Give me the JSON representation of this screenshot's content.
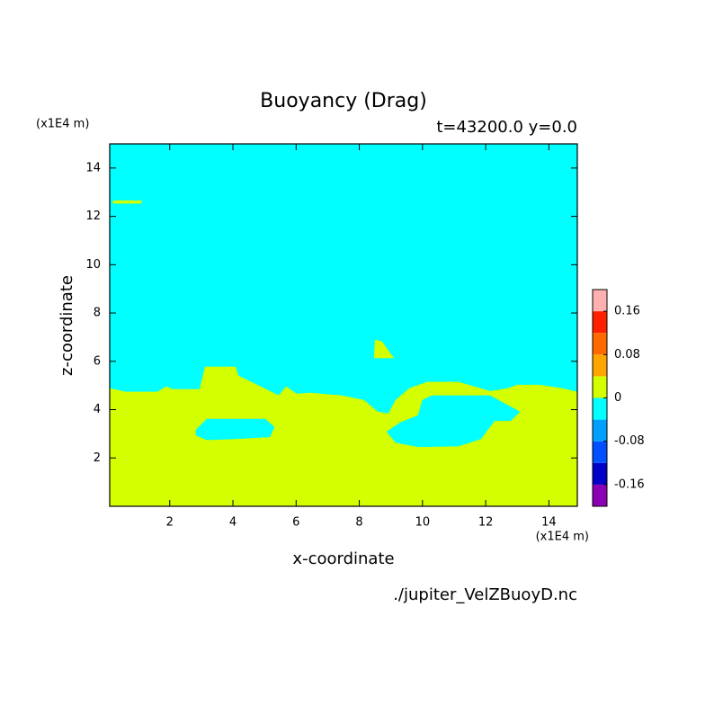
{
  "chart_data": {
    "type": "contour",
    "title": "Buoyancy (Drag)",
    "subtitle": "t=43200.0 y=0.0",
    "x_label": "x-coordinate",
    "y_label": "z-coordinate",
    "x_unit": "(x1E4 m)",
    "y_unit": "(x1E4 m)",
    "source": "./jupiter_VelZBuoyD.nc",
    "xlim": [
      0.1,
      14.9
    ],
    "ylim": [
      0,
      15
    ],
    "xticks": [
      2,
      4,
      6,
      8,
      10,
      12,
      14
    ],
    "yticks": [
      2,
      4,
      6,
      8,
      10,
      12,
      14
    ],
    "colorbar": {
      "bounds": [
        -0.2,
        -0.16,
        -0.12,
        -0.08,
        -0.04,
        0,
        0.04,
        0.08,
        0.12,
        0.16,
        0.2
      ],
      "colors": [
        "#8c00b4",
        "#0000c8",
        "#0050ff",
        "#00a0ff",
        "#00ffff",
        "#d4ff00",
        "#ffa500",
        "#ff6a00",
        "#ff2000",
        "#ffb0b0"
      ],
      "ticks": [
        -0.16,
        -0.08,
        0,
        0.08,
        0.16
      ]
    },
    "regions": [
      {
        "color": "#00ffff",
        "x": [
          0.1,
          14.9,
          14.9,
          0.1
        ],
        "y": [
          0,
          0,
          15,
          15
        ]
      },
      {
        "color": "#d4ff00",
        "x": [
          0.1,
          0.61,
          1.61,
          1.89,
          2.09,
          2.95,
          3.12,
          4.08,
          4.17,
          4.88,
          5.45,
          5.68,
          6.02,
          6.45,
          7.44,
          8.15,
          8.58,
          8.92,
          9.15,
          9.58,
          10.15,
          11.14,
          12.14,
          12.71,
          12.99,
          13.7,
          14.41,
          14.9,
          14.9,
          0.1
        ],
        "y": [
          4.88,
          4.73,
          4.73,
          4.95,
          4.84,
          4.84,
          5.77,
          5.77,
          5.4,
          4.95,
          4.58,
          4.95,
          4.65,
          4.69,
          4.58,
          4.39,
          3.91,
          3.83,
          4.39,
          4.88,
          5.14,
          5.14,
          4.76,
          4.88,
          5.02,
          5.02,
          4.88,
          4.73,
          0,
          0
        ]
      },
      {
        "color": "#00ffff",
        "x": [
          2.83,
          3.17,
          5.02,
          5.31,
          5.17,
          4.03,
          3.17,
          2.83
        ],
        "y": [
          3.16,
          3.61,
          3.61,
          3.28,
          2.87,
          2.79,
          2.75,
          2.94
        ]
      },
      {
        "color": "#00ffff",
        "x": [
          10.0,
          10.29,
          12.14,
          12.56,
          13.08,
          12.79,
          12.28,
          11.85,
          11.14,
          9.86,
          9.15,
          8.87,
          9.29,
          9.86
        ],
        "y": [
          4.39,
          4.58,
          4.58,
          4.28,
          3.91,
          3.54,
          3.54,
          2.79,
          2.49,
          2.46,
          2.64,
          3.09,
          3.46,
          3.76
        ]
      },
      {
        "color": "#d4ff00",
        "x": [
          8.47,
          8.5,
          8.72,
          8.92,
          9.09
        ],
        "y": [
          6.14,
          6.89,
          6.81,
          6.44,
          6.14
        ]
      },
      {
        "color": "#d4ff00",
        "x": [
          0.21,
          1.1,
          1.1,
          0.21
        ],
        "y": [
          12.65,
          12.65,
          12.54,
          12.54
        ]
      }
    ]
  }
}
